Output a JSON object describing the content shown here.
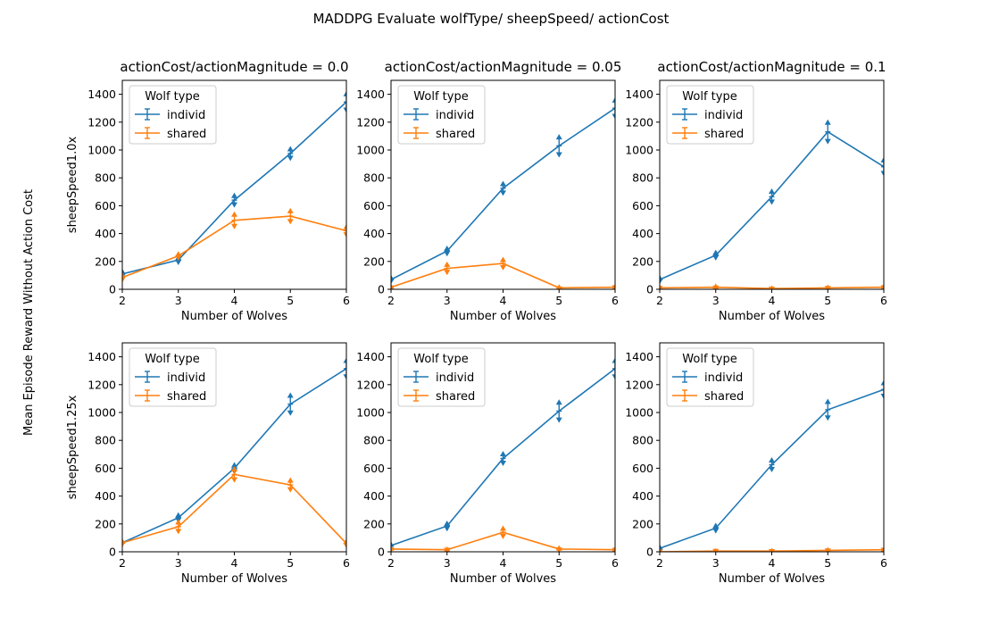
{
  "figure": {
    "suptitle": "MADDPG Evaluate wolfType/ sheepSpeed/ actionCost",
    "ylabel": "Mean Episode Reward Without Action Cost"
  },
  "chart_data": {
    "type": "line",
    "x": [
      2,
      3,
      4,
      5,
      6
    ],
    "xlabel": "Number of Wolves",
    "ylim": [
      0,
      1500
    ],
    "yticks": [
      0,
      200,
      400,
      600,
      800,
      1000,
      1200,
      1400
    ],
    "legend": {
      "title": "Wolf type",
      "placement": "top-left"
    },
    "colors": {
      "individ": "#1f77b4",
      "shared": "#ff7f0e"
    },
    "col_titles": [
      "actionCost/actionMagnitude = 0.0",
      "actionCost/actionMagnitude = 0.05",
      "actionCost/actionMagnitude = 0.1"
    ],
    "row_labels": [
      "sheepSpeed1.0x",
      "sheepSpeed1.25x"
    ],
    "panels": [
      {
        "row": 0,
        "col": 0,
        "series": [
          {
            "name": "individ",
            "values": [
              110,
              210,
              640,
              975,
              1345
            ],
            "err": [
              20,
              18,
              35,
              35,
              60
            ]
          },
          {
            "name": "shared",
            "values": [
              85,
              240,
              495,
              525,
              420
            ],
            "err": [
              18,
              15,
              45,
              40,
              30
            ]
          }
        ]
      },
      {
        "row": 0,
        "col": 1,
        "series": [
          {
            "name": "individ",
            "values": [
              70,
              275,
              725,
              1030,
              1300
            ],
            "err": [
              15,
              20,
              35,
              65,
              60
            ]
          },
          {
            "name": "shared",
            "values": [
              15,
              150,
              185,
              10,
              15
            ],
            "err": [
              8,
              30,
              30,
              8,
              5
            ]
          }
        ]
      },
      {
        "row": 0,
        "col": 2,
        "series": [
          {
            "name": "individ",
            "values": [
              70,
              245,
              665,
              1130,
              880
            ],
            "err": [
              15,
              20,
              40,
              70,
              50
            ]
          },
          {
            "name": "shared",
            "values": [
              10,
              15,
              5,
              10,
              15
            ],
            "err": [
              5,
              8,
              5,
              5,
              5
            ]
          }
        ]
      },
      {
        "row": 1,
        "col": 0,
        "series": [
          {
            "name": "individ",
            "values": [
              65,
              245,
              600,
              1060,
              1315
            ],
            "err": [
              12,
              20,
              25,
              65,
              60
            ]
          },
          {
            "name": "shared",
            "values": [
              65,
              180,
              555,
              480,
              60
            ],
            "err": [
              12,
              35,
              40,
              35,
              15
            ]
          }
        ]
      },
      {
        "row": 1,
        "col": 1,
        "series": [
          {
            "name": "individ",
            "values": [
              45,
              185,
              670,
              1010,
              1315
            ],
            "err": [
              10,
              20,
              35,
              65,
              60
            ]
          },
          {
            "name": "shared",
            "values": [
              20,
              15,
              140,
              20,
              15
            ],
            "err": [
              8,
              5,
              30,
              8,
              5
            ]
          }
        ]
      },
      {
        "row": 1,
        "col": 2,
        "series": [
          {
            "name": "individ",
            "values": [
              25,
              170,
              625,
              1020,
              1165
            ],
            "err": [
              10,
              20,
              35,
              60,
              50
            ]
          },
          {
            "name": "shared",
            "values": [
              0,
              5,
              5,
              10,
              15
            ],
            "err": [
              3,
              3,
              5,
              5,
              5
            ]
          }
        ]
      }
    ]
  }
}
